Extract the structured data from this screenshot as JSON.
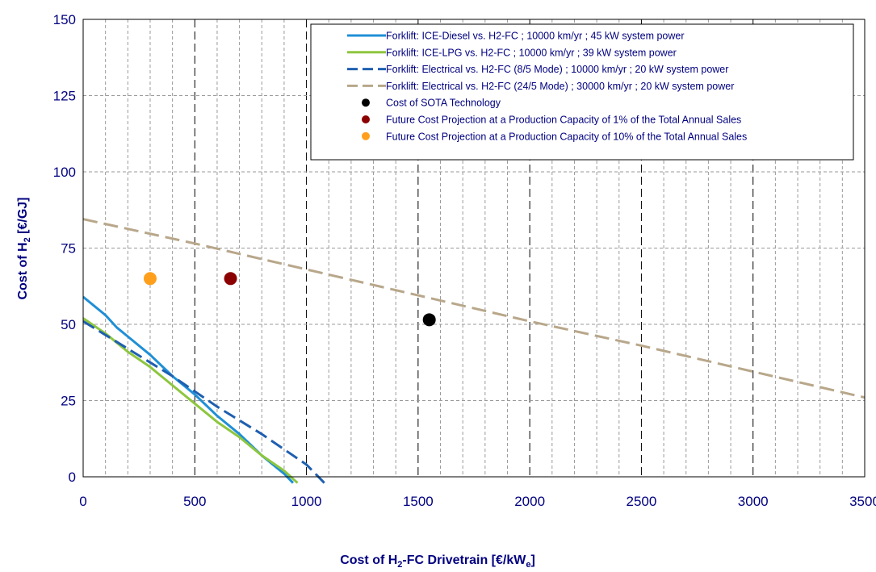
{
  "chart_data": {
    "type": "line",
    "xlabel": "Cost of H₂-FC Drivetrain [€/kWₑ]",
    "ylabel": "Cost of H₂ [€/GJ]",
    "xlim": [
      0,
      3500
    ],
    "ylim": [
      0,
      150
    ],
    "x_ticks": [
      "0",
      "500",
      "1000",
      "1500",
      "2000",
      "2500",
      "3000",
      "3500"
    ],
    "y_ticks": [
      "0",
      "25",
      "50",
      "75",
      "100",
      "125",
      "150"
    ],
    "grid": true,
    "legend_position": "top-right",
    "series": [
      {
        "name": "Forklift: ICE-Diesel vs. H2-FC ; 10000 km/yr ; 45 kW system power",
        "kind": "line",
        "style": "solid",
        "color": "#1f8fd6",
        "points": [
          [
            0,
            59
          ],
          [
            50,
            56
          ],
          [
            100,
            53
          ],
          [
            150,
            49
          ],
          [
            200,
            46
          ],
          [
            300,
            40
          ],
          [
            400,
            33
          ],
          [
            500,
            27
          ],
          [
            600,
            20
          ],
          [
            700,
            14
          ],
          [
            800,
            7
          ],
          [
            900,
            1
          ],
          [
            940,
            -2
          ]
        ]
      },
      {
        "name": "Forklift: ICE-LPG vs. H2-FC ; 10000 km/yr ; 39 kW system power",
        "kind": "line",
        "style": "solid",
        "color": "#8dc63f",
        "points": [
          [
            0,
            52
          ],
          [
            100,
            47
          ],
          [
            150,
            44
          ],
          [
            200,
            41
          ],
          [
            300,
            36
          ],
          [
            400,
            30
          ],
          [
            500,
            24
          ],
          [
            600,
            18
          ],
          [
            700,
            13
          ],
          [
            800,
            7
          ],
          [
            900,
            2
          ],
          [
            960,
            -2
          ]
        ]
      },
      {
        "name": "Forklift: Electrical vs. H2-FC (8/5 Mode) ; 10000 km/yr ; 20 kW system power",
        "kind": "line",
        "style": "dashed",
        "color": "#1f5fb0",
        "points": [
          [
            0,
            51
          ],
          [
            200,
            42
          ],
          [
            400,
            33
          ],
          [
            600,
            23
          ],
          [
            800,
            14
          ],
          [
            1000,
            4
          ],
          [
            1080,
            -2
          ]
        ]
      },
      {
        "name": "Forklift: Electrical vs. H2-FC (24/5 Mode) ; 30000 km/yr ; 20 kW system power",
        "kind": "line",
        "style": "dashed",
        "color": "#b8a78a",
        "points": [
          [
            0,
            84.5
          ],
          [
            500,
            76.5
          ],
          [
            1000,
            68
          ],
          [
            1500,
            59.5
          ],
          [
            2000,
            51
          ],
          [
            2500,
            43
          ],
          [
            3000,
            34.5
          ],
          [
            3500,
            26
          ]
        ]
      },
      {
        "name": "Cost of SOTA Technology",
        "kind": "marker",
        "color": "#000000",
        "points": [
          [
            1550,
            51.5
          ]
        ]
      },
      {
        "name": "Future Cost Projection at a Production Capacity of 1% of the Total Annual Sales",
        "kind": "marker",
        "color": "#8b0000",
        "points": [
          [
            660,
            65
          ]
        ]
      },
      {
        "name": "Future Cost Projection at a Production Capacity of 10% of the Total Annual Sales",
        "kind": "marker",
        "color": "#ff9f1c",
        "points": [
          [
            300,
            65
          ]
        ]
      }
    ]
  }
}
